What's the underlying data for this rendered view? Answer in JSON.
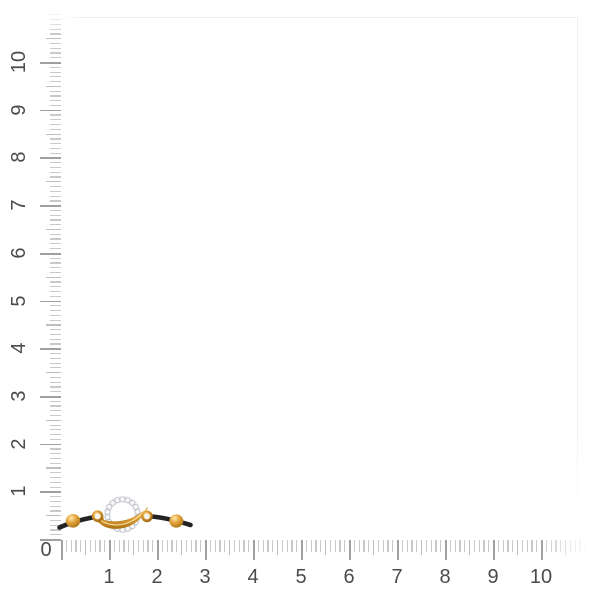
{
  "rulers": {
    "origin_label": "0",
    "horizontal_labels": [
      "1",
      "2",
      "3",
      "4",
      "5",
      "6",
      "7",
      "8",
      "9",
      "10"
    ],
    "vertical_labels": [
      "1",
      "2",
      "3",
      "4",
      "5",
      "6",
      "7",
      "8",
      "9",
      "10"
    ],
    "label_color": "#4b4b4b",
    "tick_minor_color": "#c9c9c9",
    "tick_medium_color": "#bfbfbf",
    "tick_major_color": "#a0a0a0"
  },
  "frame": {
    "border_color": "#f0f0f2"
  },
  "product": {
    "name": "black cord bracelet with diamond pave circle charm, gold sash, gold beads",
    "colors": {
      "gold": "#e2a33c",
      "gold_highlight": "#ffe9a8",
      "gold_shadow": "#a96f12",
      "gold_edge": "#b8790f",
      "diamond": "#fafafb",
      "diamond_edge": "#b4b8c0",
      "diamond_ring_base": "#e7e8ec",
      "cord": "#232326"
    }
  }
}
